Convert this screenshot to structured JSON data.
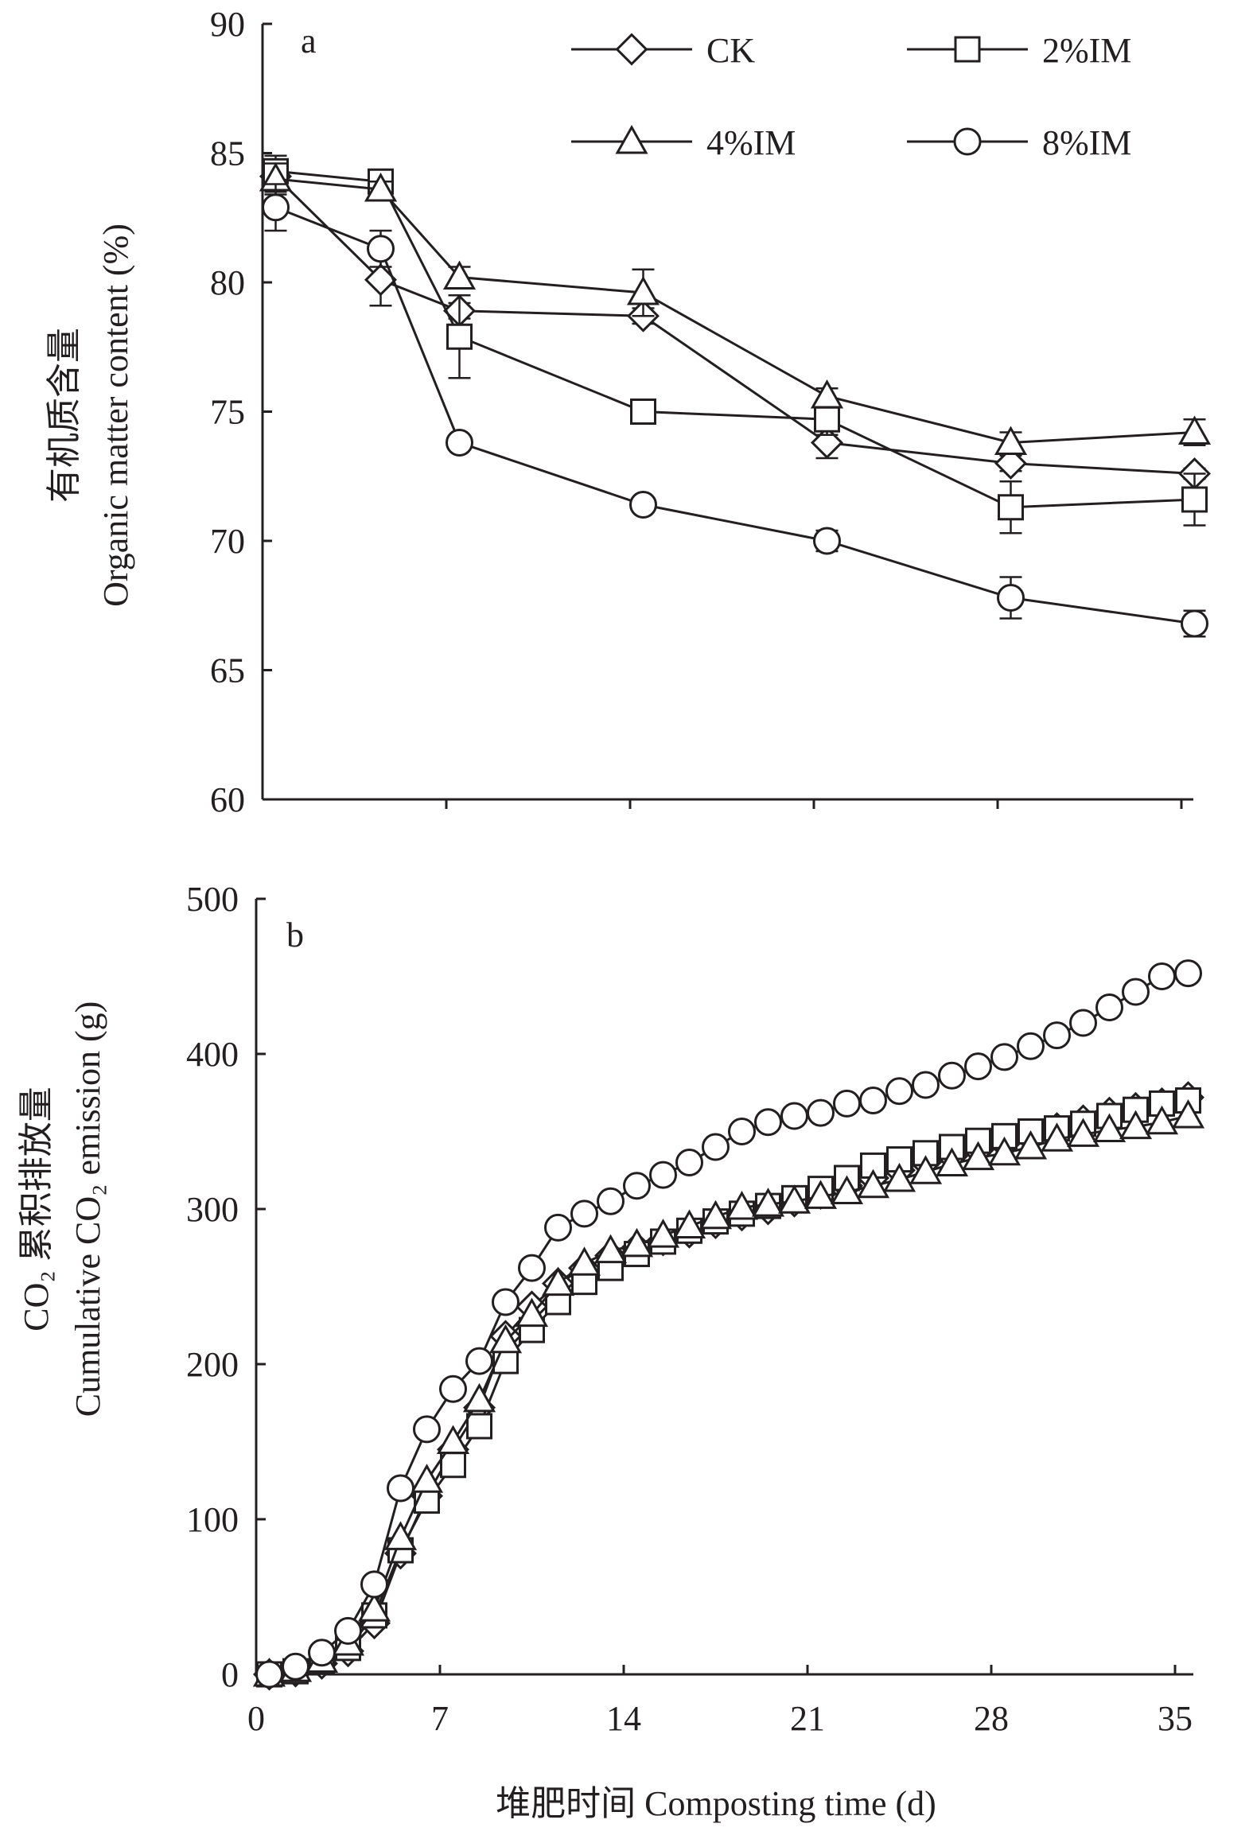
{
  "chart_data": [
    {
      "type": "line",
      "panel_label": "a",
      "ylabel_zh": "有机质含量",
      "ylabel_en": "Organic matter content (%)",
      "ylim": [
        60,
        90
      ],
      "yticks": [
        60,
        65,
        70,
        75,
        80,
        85,
        90
      ],
      "xlim": [
        0,
        35
      ],
      "grid": false,
      "legend_position": "top-right",
      "x": [
        0,
        7,
        14,
        21,
        28,
        35
      ],
      "series": [
        {
          "name": "CK",
          "marker": "diamond",
          "x": [
            0.5,
            4.5,
            7.5,
            14.5,
            21.5,
            28.5,
            35.5
          ],
          "values": [
            84.1,
            80.1,
            78.9,
            78.7,
            73.8,
            73.0,
            72.6
          ],
          "errors": [
            0.6,
            1.0,
            0.3,
            0.3,
            0.6,
            0.3,
            0.2
          ]
        },
        {
          "name": "2%IM",
          "marker": "square",
          "x": [
            0.5,
            4.5,
            7.5,
            14.5,
            21.5,
            28.5,
            35.5
          ],
          "values": [
            84.3,
            83.9,
            77.9,
            75.0,
            74.7,
            71.3,
            71.6
          ],
          "errors": [
            0.6,
            0.3,
            1.6,
            0.3,
            0.6,
            1.0,
            1.0
          ]
        },
        {
          "name": "4%IM",
          "marker": "triangle",
          "x": [
            0.5,
            4.5,
            7.5,
            14.5,
            21.5,
            28.5,
            35.5
          ],
          "values": [
            84.0,
            83.6,
            80.2,
            79.6,
            75.6,
            73.8,
            74.2
          ],
          "errors": [
            0.6,
            0.3,
            0.4,
            0.9,
            0.3,
            0.4,
            0.5
          ]
        },
        {
          "name": "8%IM",
          "marker": "circle",
          "x": [
            0.5,
            4.5,
            7.5,
            14.5,
            21.5,
            28.5,
            35.5
          ],
          "values": [
            82.9,
            81.3,
            73.8,
            71.4,
            70.0,
            67.8,
            66.8
          ],
          "errors": [
            0.9,
            0.7,
            0.1,
            0.1,
            0.4,
            0.8,
            0.5
          ]
        }
      ]
    },
    {
      "type": "line",
      "panel_label": "b",
      "ylabel_zh": "CO₂ 累积排放量",
      "ylabel_en": "Cumulative CO₂ emission (g)",
      "ylim": [
        0,
        500
      ],
      "yticks": [
        0,
        100,
        200,
        300,
        400,
        500
      ],
      "xlim": [
        0,
        35
      ],
      "grid": false,
      "x": [
        0,
        7,
        14,
        21,
        28,
        35
      ],
      "xlabel": "堆肥时间 Composting time (d)",
      "series": [
        {
          "name": "CK",
          "marker": "diamond",
          "x": [
            0.5,
            1.5,
            2.5,
            3.5,
            4.5,
            5.5,
            6.5,
            7.5,
            8.5,
            9.5,
            10.5,
            11.5,
            12.5,
            13.5,
            14.5,
            15.5,
            16.5,
            17.5,
            18.5,
            19.5,
            20.5,
            21.5,
            22.5,
            23.5,
            24.5,
            25.5,
            26.5,
            27.5,
            28.5,
            29.5,
            30.5,
            31.5,
            32.5,
            33.5,
            34.5,
            35.5
          ],
          "values": [
            0,
            2,
            7,
            15,
            33,
            78,
            115,
            145,
            172,
            218,
            237,
            252,
            262,
            270,
            275,
            280,
            285,
            291,
            296,
            300,
            305,
            310,
            315,
            320,
            325,
            330,
            334,
            338,
            342,
            346,
            352,
            357,
            362,
            365,
            368,
            372
          ]
        },
        {
          "name": "2%IM",
          "marker": "square",
          "x": [
            0.5,
            1.5,
            2.5,
            3.5,
            4.5,
            5.5,
            6.5,
            7.5,
            8.5,
            9.5,
            10.5,
            11.5,
            12.5,
            13.5,
            14.5,
            15.5,
            16.5,
            17.5,
            18.5,
            19.5,
            20.5,
            21.5,
            22.5,
            23.5,
            24.5,
            25.5,
            26.5,
            27.5,
            28.5,
            29.5,
            30.5,
            31.5,
            32.5,
            33.5,
            34.5,
            35.5
          ],
          "values": [
            0,
            2,
            8,
            17,
            38,
            80,
            112,
            135,
            160,
            202,
            222,
            240,
            253,
            262,
            271,
            279,
            286,
            292,
            297,
            302,
            307,
            313,
            320,
            328,
            332,
            336,
            340,
            344,
            347,
            350,
            352,
            355,
            360,
            364,
            368,
            370
          ]
        },
        {
          "name": "4%IM",
          "marker": "triangle",
          "x": [
            0.5,
            1.5,
            2.5,
            3.5,
            4.5,
            5.5,
            6.5,
            7.5,
            8.5,
            9.5,
            10.5,
            11.5,
            12.5,
            13.5,
            14.5,
            15.5,
            16.5,
            17.5,
            18.5,
            19.5,
            20.5,
            21.5,
            22.5,
            23.5,
            24.5,
            25.5,
            26.5,
            27.5,
            28.5,
            29.5,
            30.5,
            31.5,
            32.5,
            33.5,
            34.5,
            35.5
          ],
          "values": [
            0,
            3,
            9,
            20,
            42,
            88,
            125,
            150,
            177,
            215,
            232,
            252,
            265,
            273,
            277,
            283,
            289,
            295,
            301,
            303,
            305,
            308,
            311,
            315,
            319,
            324,
            329,
            333,
            336,
            340,
            345,
            348,
            351,
            353,
            356,
            360
          ]
        },
        {
          "name": "8%IM",
          "marker": "circle",
          "x": [
            0.5,
            1.5,
            2.5,
            3.5,
            4.5,
            5.5,
            6.5,
            7.5,
            8.5,
            9.5,
            10.5,
            11.5,
            12.5,
            13.5,
            14.5,
            15.5,
            16.5,
            17.5,
            18.5,
            19.5,
            20.5,
            21.5,
            22.5,
            23.5,
            24.5,
            25.5,
            26.5,
            27.5,
            28.5,
            29.5,
            30.5,
            31.5,
            32.5,
            33.5,
            34.5,
            35.5
          ],
          "values": [
            0,
            5,
            14,
            28,
            58,
            120,
            158,
            184,
            202,
            240,
            262,
            288,
            297,
            305,
            315,
            322,
            330,
            340,
            350,
            356,
            360,
            362,
            368,
            370,
            376,
            380,
            386,
            392,
            398,
            405,
            412,
            420,
            430,
            440,
            450,
            452
          ]
        }
      ]
    }
  ]
}
